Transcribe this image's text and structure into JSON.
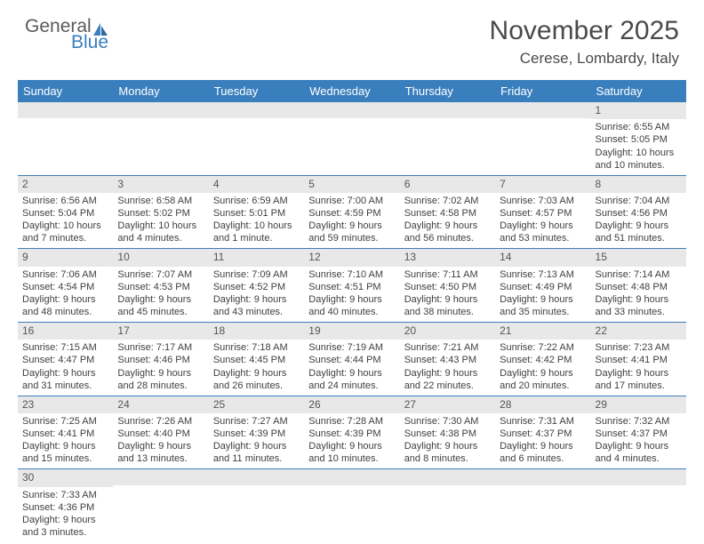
{
  "logo": {
    "text1": "General",
    "text2": "Blue",
    "sail_color": "#3a7fbd"
  },
  "title": "November 2025",
  "location": "Cerese, Lombardy, Italy",
  "colors": {
    "header_bg": "#3a7fbd",
    "header_fg": "#ffffff",
    "daynum_bg": "#e8e8e8",
    "row_border": "#3a7fbd",
    "text": "#404040"
  },
  "day_headers": [
    "Sunday",
    "Monday",
    "Tuesday",
    "Wednesday",
    "Thursday",
    "Friday",
    "Saturday"
  ],
  "weeks": [
    [
      {
        "empty": true
      },
      {
        "empty": true
      },
      {
        "empty": true
      },
      {
        "empty": true
      },
      {
        "empty": true
      },
      {
        "empty": true
      },
      {
        "n": "1",
        "sunrise": "Sunrise: 6:55 AM",
        "sunset": "Sunset: 5:05 PM",
        "daylight": "Daylight: 10 hours and 10 minutes."
      }
    ],
    [
      {
        "n": "2",
        "sunrise": "Sunrise: 6:56 AM",
        "sunset": "Sunset: 5:04 PM",
        "daylight": "Daylight: 10 hours and 7 minutes."
      },
      {
        "n": "3",
        "sunrise": "Sunrise: 6:58 AM",
        "sunset": "Sunset: 5:02 PM",
        "daylight": "Daylight: 10 hours and 4 minutes."
      },
      {
        "n": "4",
        "sunrise": "Sunrise: 6:59 AM",
        "sunset": "Sunset: 5:01 PM",
        "daylight": "Daylight: 10 hours and 1 minute."
      },
      {
        "n": "5",
        "sunrise": "Sunrise: 7:00 AM",
        "sunset": "Sunset: 4:59 PM",
        "daylight": "Daylight: 9 hours and 59 minutes."
      },
      {
        "n": "6",
        "sunrise": "Sunrise: 7:02 AM",
        "sunset": "Sunset: 4:58 PM",
        "daylight": "Daylight: 9 hours and 56 minutes."
      },
      {
        "n": "7",
        "sunrise": "Sunrise: 7:03 AM",
        "sunset": "Sunset: 4:57 PM",
        "daylight": "Daylight: 9 hours and 53 minutes."
      },
      {
        "n": "8",
        "sunrise": "Sunrise: 7:04 AM",
        "sunset": "Sunset: 4:56 PM",
        "daylight": "Daylight: 9 hours and 51 minutes."
      }
    ],
    [
      {
        "n": "9",
        "sunrise": "Sunrise: 7:06 AM",
        "sunset": "Sunset: 4:54 PM",
        "daylight": "Daylight: 9 hours and 48 minutes."
      },
      {
        "n": "10",
        "sunrise": "Sunrise: 7:07 AM",
        "sunset": "Sunset: 4:53 PM",
        "daylight": "Daylight: 9 hours and 45 minutes."
      },
      {
        "n": "11",
        "sunrise": "Sunrise: 7:09 AM",
        "sunset": "Sunset: 4:52 PM",
        "daylight": "Daylight: 9 hours and 43 minutes."
      },
      {
        "n": "12",
        "sunrise": "Sunrise: 7:10 AM",
        "sunset": "Sunset: 4:51 PM",
        "daylight": "Daylight: 9 hours and 40 minutes."
      },
      {
        "n": "13",
        "sunrise": "Sunrise: 7:11 AM",
        "sunset": "Sunset: 4:50 PM",
        "daylight": "Daylight: 9 hours and 38 minutes."
      },
      {
        "n": "14",
        "sunrise": "Sunrise: 7:13 AM",
        "sunset": "Sunset: 4:49 PM",
        "daylight": "Daylight: 9 hours and 35 minutes."
      },
      {
        "n": "15",
        "sunrise": "Sunrise: 7:14 AM",
        "sunset": "Sunset: 4:48 PM",
        "daylight": "Daylight: 9 hours and 33 minutes."
      }
    ],
    [
      {
        "n": "16",
        "sunrise": "Sunrise: 7:15 AM",
        "sunset": "Sunset: 4:47 PM",
        "daylight": "Daylight: 9 hours and 31 minutes."
      },
      {
        "n": "17",
        "sunrise": "Sunrise: 7:17 AM",
        "sunset": "Sunset: 4:46 PM",
        "daylight": "Daylight: 9 hours and 28 minutes."
      },
      {
        "n": "18",
        "sunrise": "Sunrise: 7:18 AM",
        "sunset": "Sunset: 4:45 PM",
        "daylight": "Daylight: 9 hours and 26 minutes."
      },
      {
        "n": "19",
        "sunrise": "Sunrise: 7:19 AM",
        "sunset": "Sunset: 4:44 PM",
        "daylight": "Daylight: 9 hours and 24 minutes."
      },
      {
        "n": "20",
        "sunrise": "Sunrise: 7:21 AM",
        "sunset": "Sunset: 4:43 PM",
        "daylight": "Daylight: 9 hours and 22 minutes."
      },
      {
        "n": "21",
        "sunrise": "Sunrise: 7:22 AM",
        "sunset": "Sunset: 4:42 PM",
        "daylight": "Daylight: 9 hours and 20 minutes."
      },
      {
        "n": "22",
        "sunrise": "Sunrise: 7:23 AM",
        "sunset": "Sunset: 4:41 PM",
        "daylight": "Daylight: 9 hours and 17 minutes."
      }
    ],
    [
      {
        "n": "23",
        "sunrise": "Sunrise: 7:25 AM",
        "sunset": "Sunset: 4:41 PM",
        "daylight": "Daylight: 9 hours and 15 minutes."
      },
      {
        "n": "24",
        "sunrise": "Sunrise: 7:26 AM",
        "sunset": "Sunset: 4:40 PM",
        "daylight": "Daylight: 9 hours and 13 minutes."
      },
      {
        "n": "25",
        "sunrise": "Sunrise: 7:27 AM",
        "sunset": "Sunset: 4:39 PM",
        "daylight": "Daylight: 9 hours and 11 minutes."
      },
      {
        "n": "26",
        "sunrise": "Sunrise: 7:28 AM",
        "sunset": "Sunset: 4:39 PM",
        "daylight": "Daylight: 9 hours and 10 minutes."
      },
      {
        "n": "27",
        "sunrise": "Sunrise: 7:30 AM",
        "sunset": "Sunset: 4:38 PM",
        "daylight": "Daylight: 9 hours and 8 minutes."
      },
      {
        "n": "28",
        "sunrise": "Sunrise: 7:31 AM",
        "sunset": "Sunset: 4:37 PM",
        "daylight": "Daylight: 9 hours and 6 minutes."
      },
      {
        "n": "29",
        "sunrise": "Sunrise: 7:32 AM",
        "sunset": "Sunset: 4:37 PM",
        "daylight": "Daylight: 9 hours and 4 minutes."
      }
    ],
    [
      {
        "n": "30",
        "sunrise": "Sunrise: 7:33 AM",
        "sunset": "Sunset: 4:36 PM",
        "daylight": "Daylight: 9 hours and 3 minutes."
      },
      {
        "empty": true
      },
      {
        "empty": true
      },
      {
        "empty": true
      },
      {
        "empty": true
      },
      {
        "empty": true
      },
      {
        "empty": true
      }
    ]
  ]
}
